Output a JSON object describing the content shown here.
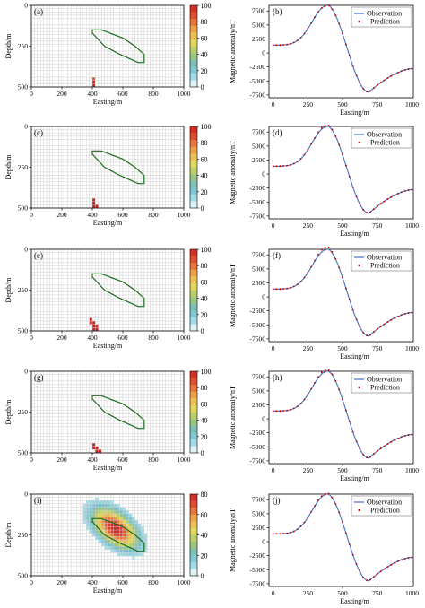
{
  "chart_data": [
    {
      "id": "a",
      "type": "heatmap",
      "panel_label": "(a)",
      "xlabel": "Easting/m",
      "ylabel": "Depth/m",
      "xlim": [
        0,
        1000
      ],
      "ylim": [
        500,
        0
      ],
      "xticks": [
        0,
        200,
        400,
        600,
        800,
        1000
      ],
      "yticks": [
        0,
        250,
        500
      ],
      "colorbar": {
        "min": 0,
        "max": 100,
        "ticks": [
          0,
          20,
          40,
          60,
          80,
          100
        ]
      },
      "cells": [
        [
          20,
          22,
          3,
          85
        ],
        [
          20,
          23,
          10,
          100
        ],
        [
          21,
          25,
          8,
          100
        ],
        [
          22,
          26,
          8,
          100
        ],
        [
          23,
          27,
          8,
          100
        ],
        [
          24,
          28,
          7,
          100
        ],
        [
          25,
          29,
          6,
          100
        ],
        [
          26,
          30,
          5,
          100
        ],
        [
          27,
          30,
          4,
          100
        ],
        [
          28,
          31,
          3,
          100
        ],
        [
          29,
          31,
          3,
          90
        ],
        [
          30,
          31,
          2,
          70
        ],
        [
          29,
          33,
          2,
          45
        ],
        [
          30,
          34,
          1,
          30
        ]
      ],
      "outline": [
        [
          400,
          150
        ],
        [
          460,
          150
        ],
        [
          600,
          200
        ],
        [
          680,
          250
        ],
        [
          740,
          300
        ],
        [
          740,
          350
        ],
        [
          700,
          350
        ],
        [
          580,
          300
        ],
        [
          480,
          250
        ],
        [
          400,
          170
        ]
      ]
    },
    {
      "id": "b",
      "type": "line",
      "panel_label": "(b)",
      "xlabel": "Easting/m",
      "ylabel": "Magnetic anomaly/nT",
      "xlim": [
        -30,
        1010
      ],
      "ylim": [
        -8000,
        8500
      ],
      "xticks": [
        0,
        250,
        500,
        750,
        1000
      ],
      "yticks": [
        -7500,
        -5000,
        -2500,
        0,
        2500,
        5000,
        7500
      ],
      "series": [
        {
          "name": "Observation",
          "style": "line",
          "color": "#4472c4"
        },
        {
          "name": "Prediction",
          "style": "markers",
          "color": "#c00000"
        }
      ],
      "profile": {
        "base": 1400,
        "peak_x": 385,
        "peak_y": 8600,
        "trough_x": 690,
        "trough_y": -7000,
        "end_y": -2800
      },
      "prediction_offset": 0
    },
    {
      "id": "c",
      "type": "heatmap",
      "panel_label": "(c)",
      "xlabel": "Easting/m",
      "ylabel": "Depth/m",
      "xlim": [
        0,
        1000
      ],
      "ylim": [
        500,
        0
      ],
      "xticks": [
        0,
        200,
        400,
        600,
        800,
        1000
      ],
      "yticks": [
        0,
        250,
        500
      ],
      "colorbar": {
        "min": 0,
        "max": 100,
        "ticks": [
          0,
          20,
          40,
          60,
          80,
          100
        ]
      },
      "cells": [
        [
          20,
          22,
          3,
          100
        ],
        [
          21,
          24,
          5,
          100
        ],
        [
          22,
          25,
          6,
          100
        ],
        [
          23,
          26,
          7,
          100
        ],
        [
          24,
          27,
          7,
          100
        ],
        [
          25,
          28,
          7,
          100
        ],
        [
          26,
          29,
          6,
          100
        ],
        [
          27,
          30,
          5,
          100
        ],
        [
          28,
          31,
          4,
          100
        ],
        [
          29,
          31,
          3,
          100
        ],
        [
          30,
          31,
          2,
          100
        ],
        [
          31,
          31,
          1,
          100
        ]
      ],
      "outline": [
        [
          400,
          150
        ],
        [
          460,
          150
        ],
        [
          600,
          200
        ],
        [
          680,
          250
        ],
        [
          740,
          300
        ],
        [
          740,
          350
        ],
        [
          700,
          350
        ],
        [
          580,
          300
        ],
        [
          480,
          250
        ],
        [
          400,
          170
        ]
      ]
    },
    {
      "id": "d",
      "type": "line",
      "panel_label": "(d)",
      "xlabel": "Easting/m",
      "ylabel": "Magnetic anomaly/nT",
      "xlim": [
        -30,
        1010
      ],
      "ylim": [
        -8000,
        8500
      ],
      "xticks": [
        0,
        250,
        500,
        750,
        1000
      ],
      "yticks": [
        -7500,
        -5000,
        -2500,
        0,
        2500,
        5000,
        7500
      ],
      "series": [
        {
          "name": "Observation",
          "style": "line",
          "color": "#4472c4"
        },
        {
          "name": "Prediction",
          "style": "markers",
          "color": "#c00000"
        }
      ],
      "profile": {
        "base": 1400,
        "peak_x": 385,
        "peak_y": 8600,
        "trough_x": 690,
        "trough_y": -7000,
        "end_y": -2800
      },
      "prediction_offset": 250
    },
    {
      "id": "e",
      "type": "heatmap",
      "panel_label": "(e)",
      "xlabel": "Easting/m",
      "ylabel": "Depth/m",
      "xlim": [
        0,
        1000
      ],
      "ylim": [
        500,
        0
      ],
      "xticks": [
        0,
        200,
        400,
        600,
        800,
        1000
      ],
      "yticks": [
        0,
        250,
        500
      ],
      "colorbar": {
        "min": 0,
        "max": 100,
        "ticks": [
          0,
          20,
          40,
          60,
          80,
          100
        ]
      },
      "cells": [
        [
          19,
          21,
          2,
          100
        ],
        [
          20,
          22,
          3,
          100
        ],
        [
          21,
          23,
          5,
          100
        ],
        [
          22,
          25,
          5,
          100
        ],
        [
          23,
          26,
          6,
          100
        ],
        [
          24,
          27,
          6,
          100
        ],
        [
          25,
          28,
          6,
          100
        ],
        [
          26,
          29,
          6,
          100
        ],
        [
          27,
          30,
          5,
          100
        ],
        [
          28,
          31,
          4,
          100
        ],
        [
          29,
          32,
          3,
          100
        ],
        [
          30,
          33,
          2,
          100
        ]
      ],
      "outline": [
        [
          400,
          150
        ],
        [
          460,
          150
        ],
        [
          600,
          200
        ],
        [
          680,
          250
        ],
        [
          740,
          300
        ],
        [
          740,
          350
        ],
        [
          700,
          350
        ],
        [
          580,
          300
        ],
        [
          480,
          250
        ],
        [
          400,
          170
        ]
      ]
    },
    {
      "id": "f",
      "type": "line",
      "panel_label": "(f)",
      "xlabel": "Easting/m",
      "ylabel": "Magnetic anomaly/nT",
      "xlim": [
        -30,
        1010
      ],
      "ylim": [
        -8000,
        8500
      ],
      "xticks": [
        0,
        250,
        500,
        750,
        1000
      ],
      "yticks": [
        -7500,
        -5000,
        -2500,
        0,
        2500,
        5000,
        7500
      ],
      "series": [
        {
          "name": "Observation",
          "style": "line",
          "color": "#4472c4"
        },
        {
          "name": "Prediction",
          "style": "markers",
          "color": "#c00000"
        }
      ],
      "profile": {
        "base": 1400,
        "peak_x": 385,
        "peak_y": 8600,
        "trough_x": 690,
        "trough_y": -7000,
        "end_y": -2800
      },
      "prediction_offset": 450
    },
    {
      "id": "g",
      "type": "heatmap",
      "panel_label": "(g)",
      "xlabel": "Easting/m",
      "ylabel": "Depth/m",
      "xlim": [
        0,
        1000
      ],
      "ylim": [
        500,
        0
      ],
      "xticks": [
        0,
        200,
        400,
        600,
        800,
        1000
      ],
      "yticks": [
        0,
        250,
        500
      ],
      "colorbar": {
        "min": 0,
        "max": 100,
        "ticks": [
          0,
          20,
          40,
          60,
          80,
          100
        ]
      },
      "cells": [
        [
          20,
          22,
          2,
          100
        ],
        [
          21,
          23,
          4,
          100
        ],
        [
          22,
          24,
          6,
          100
        ],
        [
          23,
          25,
          7,
          100
        ],
        [
          24,
          26,
          8,
          100
        ],
        [
          25,
          27,
          8,
          100
        ],
        [
          26,
          28,
          7,
          100
        ],
        [
          27,
          29,
          6,
          100
        ],
        [
          28,
          29,
          5,
          100
        ],
        [
          29,
          30,
          3,
          100
        ],
        [
          30,
          31,
          2,
          100
        ],
        [
          31,
          31,
          1,
          100
        ]
      ],
      "outline": [
        [
          400,
          150
        ],
        [
          460,
          150
        ],
        [
          600,
          200
        ],
        [
          680,
          250
        ],
        [
          740,
          300
        ],
        [
          740,
          350
        ],
        [
          700,
          350
        ],
        [
          580,
          300
        ],
        [
          480,
          250
        ],
        [
          400,
          170
        ]
      ]
    },
    {
      "id": "h",
      "type": "line",
      "panel_label": "(h)",
      "xlabel": "Easting/m",
      "ylabel": "Magnetic anomaly/nT",
      "xlim": [
        -30,
        1010
      ],
      "ylim": [
        -8000,
        8500
      ],
      "xticks": [
        0,
        250,
        500,
        750,
        1000
      ],
      "yticks": [
        -7500,
        -5000,
        -2500,
        0,
        2500,
        5000,
        7500
      ],
      "series": [
        {
          "name": "Observation",
          "style": "line",
          "color": "#4472c4"
        },
        {
          "name": "Prediction",
          "style": "markers",
          "color": "#c00000"
        }
      ],
      "profile": {
        "base": 1400,
        "peak_x": 385,
        "peak_y": 8600,
        "trough_x": 690,
        "trough_y": -7000,
        "end_y": -2800
      },
      "prediction_offset": 300
    },
    {
      "id": "i",
      "type": "heatmap",
      "panel_label": "(i)",
      "xlabel": "Easting/m",
      "ylabel": "Depth/m",
      "xlim": [
        0,
        1000
      ],
      "ylim": [
        500,
        0
      ],
      "xticks": [
        0,
        200,
        400,
        600,
        800,
        1000
      ],
      "yticks": [
        0,
        250,
        500
      ],
      "colorbar": {
        "min": 0,
        "max": 80,
        "ticks": [
          0,
          20,
          40,
          60,
          80
        ]
      },
      "blob": {
        "cx": 27.5,
        "cy": 10.5,
        "rx": 8.5,
        "ry": 4.6,
        "tilt": 0.62,
        "peak": 82,
        "threshold": 8
      },
      "outline": [
        [
          400,
          150
        ],
        [
          460,
          150
        ],
        [
          600,
          200
        ],
        [
          680,
          250
        ],
        [
          740,
          300
        ],
        [
          740,
          350
        ],
        [
          700,
          350
        ],
        [
          580,
          300
        ],
        [
          480,
          250
        ],
        [
          400,
          170
        ]
      ]
    },
    {
      "id": "j",
      "type": "line",
      "panel_label": "(j)",
      "xlabel": "Easting/m",
      "ylabel": "Magnetic anomaly/nT",
      "xlim": [
        -30,
        1010
      ],
      "ylim": [
        -8000,
        8500
      ],
      "xticks": [
        0,
        250,
        500,
        750,
        1000
      ],
      "yticks": [
        -7500,
        -5000,
        -2500,
        0,
        2500,
        5000,
        7500
      ],
      "series": [
        {
          "name": "Observation",
          "style": "line",
          "color": "#4472c4"
        },
        {
          "name": "Prediction",
          "style": "markers",
          "color": "#c00000"
        }
      ],
      "profile": {
        "base": 1400,
        "peak_x": 385,
        "peak_y": 8600,
        "trough_x": 690,
        "trough_y": -7000,
        "end_y": -2800
      },
      "prediction_offset": 150
    }
  ]
}
